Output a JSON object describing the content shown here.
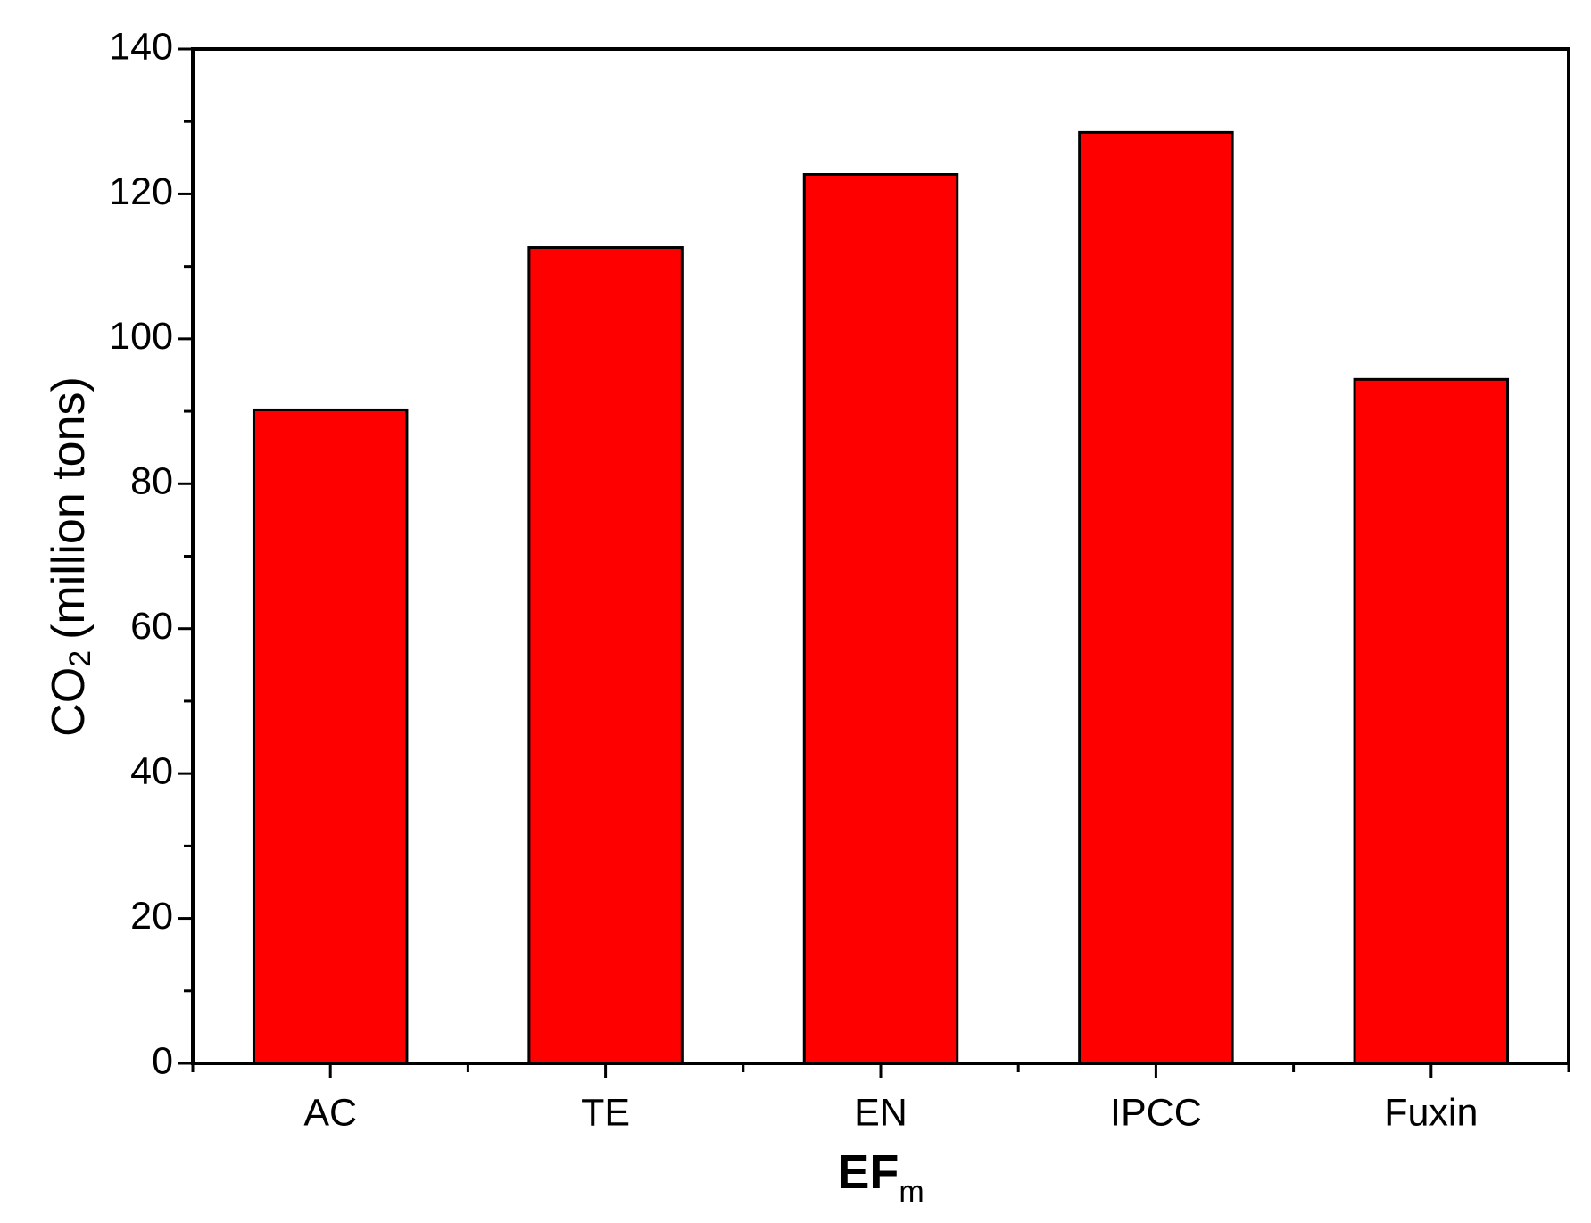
{
  "chart_data": {
    "type": "bar",
    "categories": [
      "AC",
      "TE",
      "EN",
      "IPCC",
      "Fuxin"
    ],
    "values": [
      90.2,
      112.6,
      122.7,
      128.5,
      94.4
    ],
    "color": "#ff0000",
    "ylabel": [
      "CO",
      "2",
      "(million tons)"
    ],
    "xlabel": [
      "EF",
      "m"
    ],
    "ylim": [
      0,
      140
    ],
    "yticks": [
      0,
      20,
      40,
      60,
      80,
      100,
      120,
      140
    ]
  }
}
